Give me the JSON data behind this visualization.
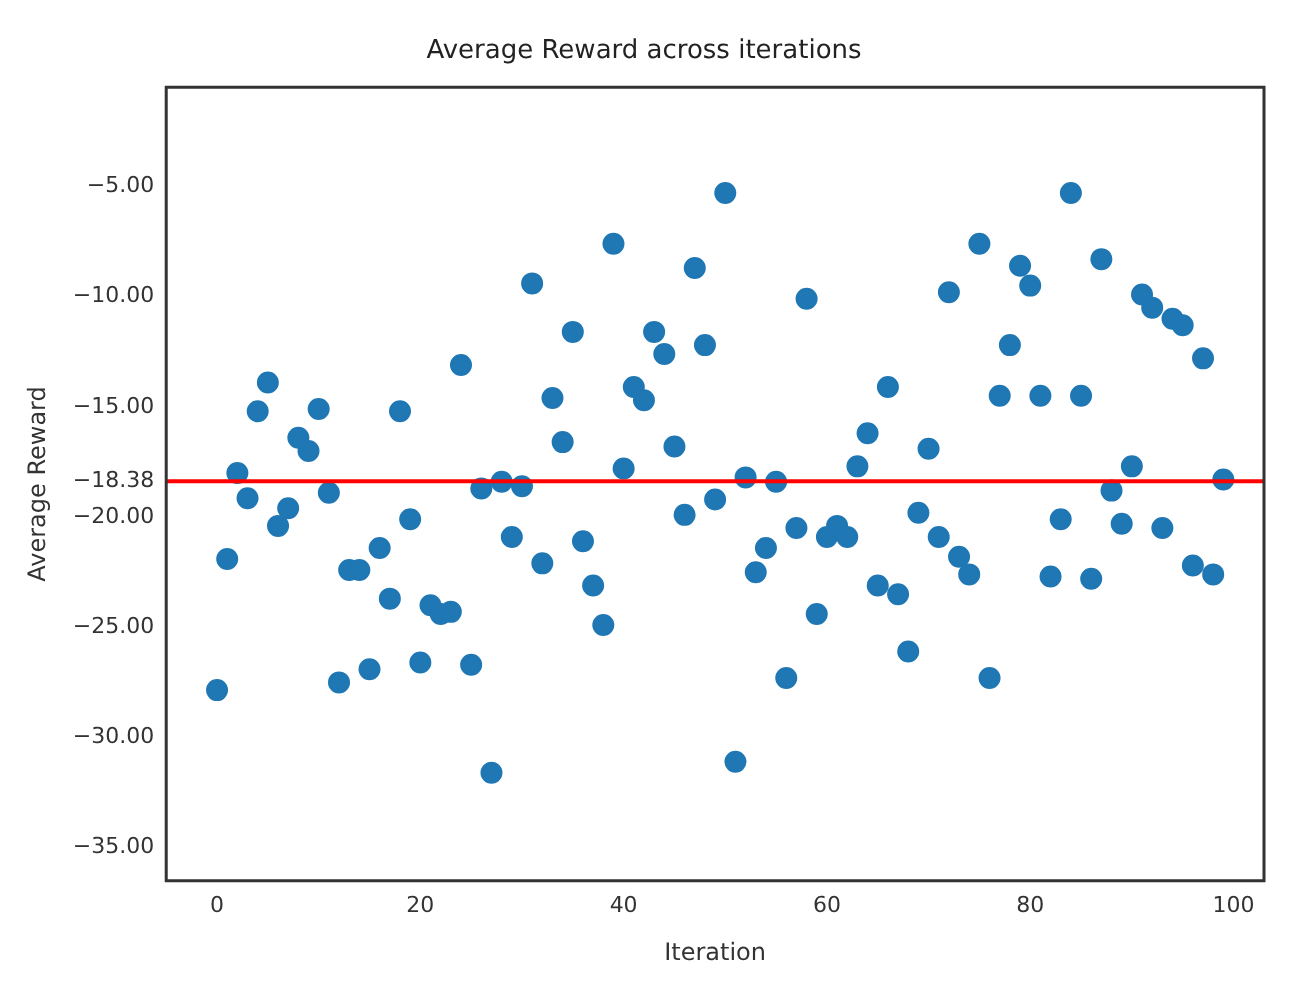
{
  "chart_data": {
    "type": "scatter",
    "title": "Average Reward across iterations",
    "xlabel": "Iteration",
    "ylabel": "Average Reward",
    "x": [
      0,
      1,
      2,
      3,
      4,
      5,
      6,
      7,
      8,
      9,
      10,
      11,
      12,
      13,
      14,
      15,
      16,
      17,
      18,
      19,
      20,
      21,
      22,
      23,
      24,
      25,
      26,
      27,
      28,
      29,
      30,
      31,
      32,
      33,
      34,
      35,
      36,
      37,
      38,
      39,
      40,
      41,
      42,
      43,
      44,
      45,
      46,
      47,
      48,
      49,
      50,
      51,
      52,
      53,
      54,
      55,
      56,
      57,
      58,
      59,
      60,
      61,
      62,
      63,
      64,
      65,
      66,
      67,
      68,
      69,
      70,
      71,
      72,
      73,
      74,
      75,
      76,
      77,
      78,
      79,
      80,
      81,
      82,
      83,
      84,
      85,
      86,
      87,
      88,
      89,
      90,
      91,
      92,
      93,
      94,
      95,
      96,
      97,
      98,
      99
    ],
    "series": [
      {
        "color": "#1f77b4",
        "values": [
          -27.85,
          -21.9,
          -18.0,
          -19.15,
          -15.2,
          -13.9,
          -20.4,
          -19.6,
          -16.4,
          -17.0,
          -15.1,
          -18.9,
          -27.5,
          -22.4,
          -22.4,
          -26.9,
          -21.4,
          -23.7,
          -15.2,
          -20.1,
          -26.6,
          -24.0,
          -24.4,
          -24.3,
          -13.1,
          -26.7,
          -18.7,
          -31.6,
          -18.4,
          -20.9,
          -18.6,
          -9.4,
          -22.1,
          -14.6,
          -16.6,
          -11.6,
          -21.1,
          -23.1,
          -24.9,
          -7.6,
          -17.8,
          -14.1,
          -14.7,
          -11.6,
          -12.6,
          -16.8,
          -19.9,
          -8.7,
          -12.2,
          -19.2,
          -5.3,
          -31.1,
          -18.2,
          -22.5,
          -21.4,
          -18.4,
          -27.3,
          -20.5,
          -10.1,
          -24.4,
          -20.9,
          -20.4,
          -20.9,
          -17.7,
          -16.2,
          -23.1,
          -14.1,
          -23.5,
          -26.1,
          -19.8,
          -16.9,
          -20.9,
          -9.8,
          -21.8,
          -22.6,
          -7.6,
          -27.3,
          -14.5,
          -12.2,
          -8.6,
          -9.5,
          -14.5,
          -22.7,
          -20.1,
          -5.3,
          -14.5,
          -22.8,
          -8.3,
          -18.8,
          -20.3,
          -17.7,
          -9.9,
          -10.5,
          -20.5,
          -11.0,
          -11.3,
          -22.2,
          -12.8,
          -22.6,
          -18.3
        ]
      }
    ],
    "xlim": [
      -5,
      103
    ],
    "xticks": [
      0,
      20,
      40,
      60,
      80,
      100
    ],
    "ylim": [
      -36.5,
      -0.5
    ],
    "yticks": [
      {
        "value": -5,
        "label": "−5.00"
      },
      {
        "value": -10,
        "label": "−10.00"
      },
      {
        "value": -15,
        "label": "−15.00"
      },
      {
        "value": -18.38,
        "label": "−18.38"
      },
      {
        "value": -20,
        "label": "−20.00"
      },
      {
        "value": -25,
        "label": "−25.00"
      },
      {
        "value": -30,
        "label": "−30.00"
      },
      {
        "value": -35,
        "label": "−35.00"
      }
    ],
    "ref_lines": [
      {
        "axis": "y",
        "value": -18.38,
        "color": "#ff0000"
      }
    ],
    "marker": "circle",
    "grid": false,
    "legend": false
  }
}
